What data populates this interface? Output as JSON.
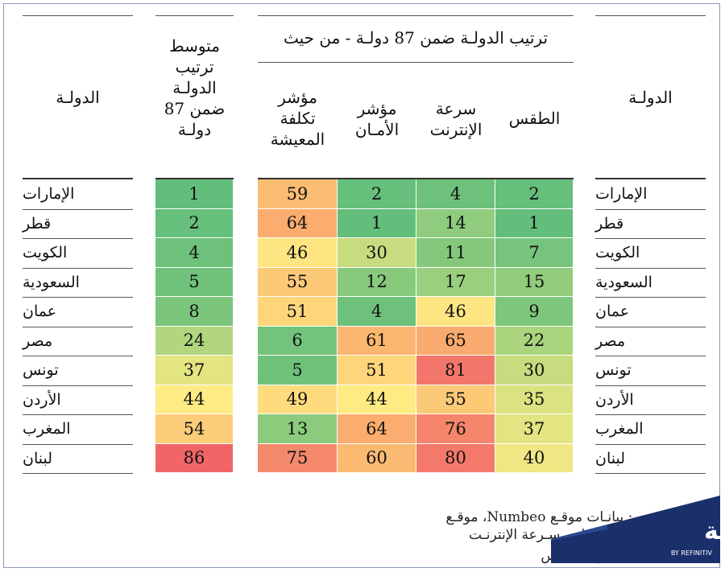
{
  "headers": {
    "country_right": "الدولـة",
    "country_left": "الدولـة",
    "average": [
      "متوسط",
      "ترتيب",
      "الدولـة",
      "ضمن 87",
      "دولـة"
    ],
    "group": "ترتيب الدولـة ضمن 87 دولـة - من حيث",
    "weather": "الطقس",
    "internet": [
      "سرعة",
      "الإنترنت"
    ],
    "safety": [
      "مؤشر",
      "الأمـان"
    ],
    "cost": [
      "مؤشر",
      "تكلفة",
      "المعيشة"
    ]
  },
  "chart_data": {
    "type": "table",
    "title": "ترتيب الدولـة ضمن 87 دولـة - من حيث",
    "columns": [
      "الطقس",
      "سرعة الإنترنت",
      "مؤشر الأمـان",
      "مؤشر تكلفة المعيشة",
      "متوسط ترتيب الدولـة ضمن 87 دولـة"
    ],
    "rows": [
      {
        "country": "الإمارات",
        "weather": 2,
        "internet": 4,
        "safety": 2,
        "cost": 59,
        "average": 1
      },
      {
        "country": "قطر",
        "weather": 1,
        "internet": 14,
        "safety": 1,
        "cost": 64,
        "average": 2
      },
      {
        "country": "الكويت",
        "weather": 7,
        "internet": 11,
        "safety": 30,
        "cost": 46,
        "average": 4
      },
      {
        "country": "السعودية",
        "weather": 15,
        "internet": 17,
        "safety": 12,
        "cost": 55,
        "average": 5
      },
      {
        "country": "عمان",
        "weather": 9,
        "internet": 46,
        "safety": 4,
        "cost": 51,
        "average": 8
      },
      {
        "country": "مصر",
        "weather": 22,
        "internet": 65,
        "safety": 61,
        "cost": 6,
        "average": 24
      },
      {
        "country": "تونس",
        "weather": 30,
        "internet": 81,
        "safety": 51,
        "cost": 5,
        "average": 37
      },
      {
        "country": "الأردن",
        "weather": 35,
        "internet": 55,
        "safety": 44,
        "cost": 49,
        "average": 44
      },
      {
        "country": "المغرب",
        "weather": 37,
        "internet": 76,
        "safety": 64,
        "cost": 13,
        "average": 54
      },
      {
        "country": "لبنان",
        "weather": 40,
        "internet": 80,
        "safety": 60,
        "cost": 75,
        "average": 86
      }
    ]
  },
  "source": {
    "line1": "المصـدر: بيانـات موقـع Numbeo، موقـع Speedtest لقيـاس سـرعة الإنترنـت",
    "line2": "بالـدول، مواقـع للطقـس"
  },
  "logo": {
    "word": "زاوية",
    "by": "BY REFINITIV"
  }
}
